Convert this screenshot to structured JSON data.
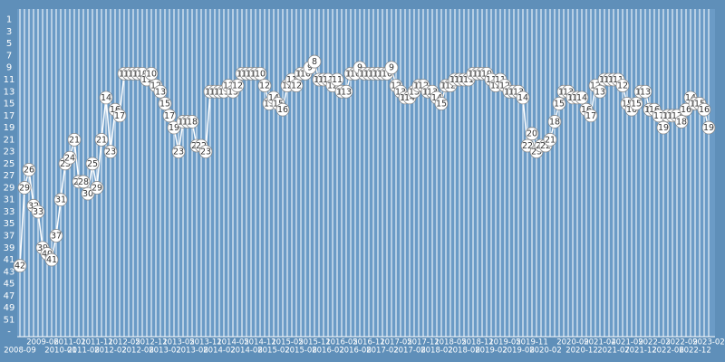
{
  "chart_data": {
    "type": "rank-line",
    "color": "#ffffff",
    "y_inverted": true,
    "ylim": [
      0,
      53.5
    ],
    "yticks": [
      1,
      3,
      5,
      7,
      9,
      11,
      13,
      15,
      17,
      19,
      21,
      23,
      25,
      27,
      29,
      31,
      33,
      35,
      37,
      39,
      41,
      43,
      45,
      47,
      49,
      51,
      {
        "value": 53,
        "label": "-"
      }
    ],
    "categories": [
      "2008-09",
      null,
      null,
      null,
      null,
      "2009-06",
      null,
      null,
      null,
      "2010-01",
      null,
      "2011-01",
      null,
      null,
      "2011-08",
      null,
      null,
      "2011-11",
      null,
      null,
      "2012-02",
      null,
      null,
      "2012-05",
      null,
      null,
      "2012-08",
      null,
      null,
      "2012-11",
      null,
      null,
      "2013-02",
      null,
      null,
      "2013-05",
      null,
      null,
      "2013-08",
      null,
      null,
      "2013-11",
      null,
      null,
      "2014-02",
      null,
      null,
      "2014-05",
      null,
      null,
      "2014-08",
      null,
      null,
      "2014-11",
      null,
      null,
      "2015-02",
      null,
      null,
      "2015-05",
      null,
      null,
      "2015-08",
      null,
      null,
      "2015-11",
      null,
      null,
      "2016-02",
      null,
      null,
      "2016-05",
      null,
      null,
      "2016-08",
      null,
      null,
      "2016-11",
      null,
      null,
      "2017-02",
      null,
      null,
      "2017-05",
      null,
      null,
      "2017-08",
      null,
      null,
      "2017-11",
      null,
      null,
      "2018-02",
      null,
      null,
      "2018-05",
      null,
      null,
      "2018-08",
      null,
      null,
      "2018-11",
      null,
      null,
      "2019-02",
      null,
      null,
      "2019-05",
      null,
      null,
      "2019-08",
      null,
      null,
      "2019-11",
      null,
      null,
      "2020-02",
      null,
      null,
      null,
      null,
      null,
      "2020-09",
      null,
      "2020-12",
      null,
      null,
      null,
      "2021-04",
      null,
      null,
      "2021-07",
      null,
      null,
      "2021-09",
      null,
      null,
      "2021-12",
      null,
      null,
      "2022-03",
      null,
      null,
      "2022-06",
      null,
      null,
      "2022-09",
      null,
      null,
      "2022-12",
      null,
      null,
      "2023-02"
    ],
    "values": [
      42,
      29,
      26,
      32,
      33,
      39,
      40,
      41,
      37,
      31,
      25,
      24,
      21,
      28,
      28,
      30,
      25,
      29,
      21,
      14,
      23,
      16,
      17,
      10,
      10,
      10,
      10,
      10,
      11,
      10,
      12,
      13,
      15,
      17,
      19,
      23,
      18,
      18,
      18,
      22,
      22,
      23,
      13,
      13,
      13,
      13,
      12,
      13,
      12,
      10,
      10,
      10,
      10,
      10,
      12,
      15,
      14,
      15,
      16,
      12,
      11,
      12,
      10,
      10,
      9,
      8,
      11,
      11,
      11,
      12,
      11,
      13,
      13,
      10,
      10,
      9,
      10,
      10,
      10,
      10,
      10,
      10,
      9,
      12,
      13,
      14,
      14,
      13,
      12,
      12,
      13,
      13,
      14,
      15,
      12,
      12,
      11,
      11,
      11,
      11,
      10,
      10,
      10,
      10,
      11,
      12,
      11,
      12,
      13,
      13,
      13,
      14,
      22,
      20,
      23,
      22,
      22,
      21,
      18,
      15,
      13,
      13,
      14,
      14,
      14,
      16,
      17,
      12,
      13,
      11,
      11,
      11,
      11,
      12,
      15,
      16,
      15,
      13,
      13,
      16,
      16,
      17,
      19,
      17,
      17,
      17,
      18,
      16,
      14,
      15,
      15,
      16,
      19
    ]
  }
}
